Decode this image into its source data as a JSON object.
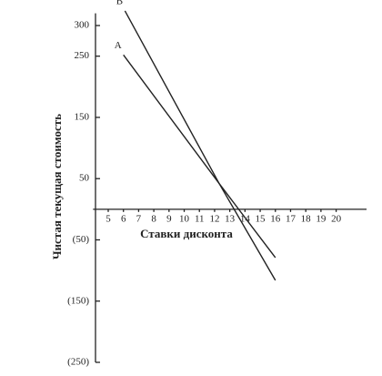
{
  "chart_data": {
    "type": "line",
    "x_label": "Ставки дисконта",
    "y_label": "Чистая текущая стоимость",
    "xlim": [
      4,
      22
    ],
    "ylim": [
      -250,
      320
    ],
    "xticks": [
      5,
      6,
      7,
      8,
      9,
      10,
      11,
      12,
      13,
      14,
      15,
      16,
      17,
      18,
      19,
      20
    ],
    "yticks": [
      300,
      250,
      150,
      50,
      {
        "value": -50,
        "label": "(50)"
      },
      {
        "value": -150,
        "label": "(150)"
      },
      {
        "value": -250,
        "label": "(250)"
      }
    ],
    "series": [
      {
        "name": "A",
        "color": "#222222",
        "x": [
          6,
          12.3,
          16
        ],
        "values": [
          252,
          42,
          -79
        ]
      },
      {
        "name": "B",
        "color": "#222222",
        "x": [
          6.1,
          12.3,
          16
        ],
        "values": [
          324,
          42,
          -116
        ]
      }
    ]
  }
}
